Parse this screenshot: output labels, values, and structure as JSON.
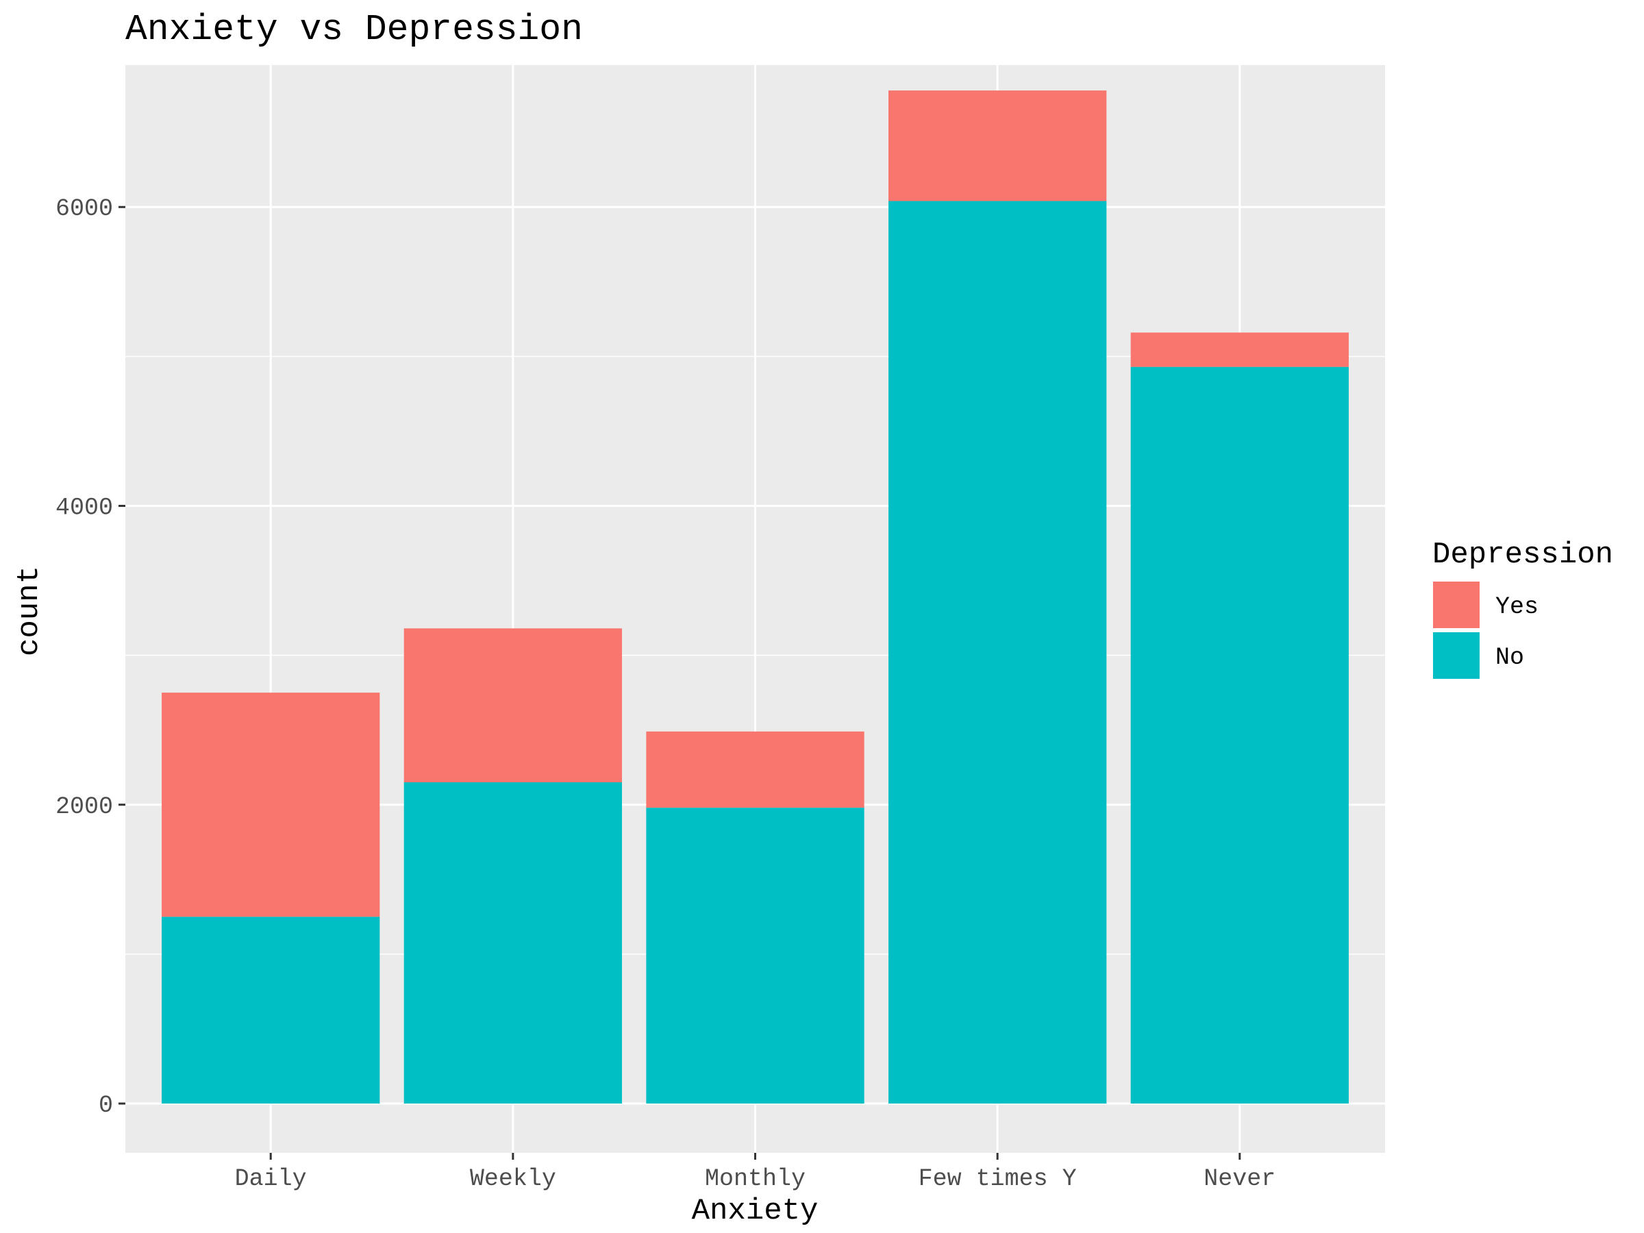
{
  "chart_data": {
    "type": "bar",
    "stacked": true,
    "title": "Anxiety vs Depression",
    "xlabel": "Anxiety",
    "ylabel": "count",
    "categories": [
      "Daily",
      "Weekly",
      "Monthly",
      "Few times Y",
      "Never"
    ],
    "series": [
      {
        "name": "No",
        "color": "#00BFC4",
        "values": [
          1250,
          2150,
          1980,
          6040,
          4930
        ]
      },
      {
        "name": "Yes",
        "color": "#F8766D",
        "values": [
          1500,
          1030,
          510,
          740,
          230
        ]
      }
    ],
    "ylim": [
      -330,
      6950
    ],
    "yticks": [
      0,
      2000,
      4000,
      6000
    ],
    "grid": true,
    "legend": {
      "title": "Depression",
      "placement": "right",
      "entries": [
        {
          "label": "Yes",
          "color": "#F8766D"
        },
        {
          "label": "No",
          "color": "#00BFC4"
        }
      ]
    },
    "panel_background": "#EBEBEB"
  }
}
